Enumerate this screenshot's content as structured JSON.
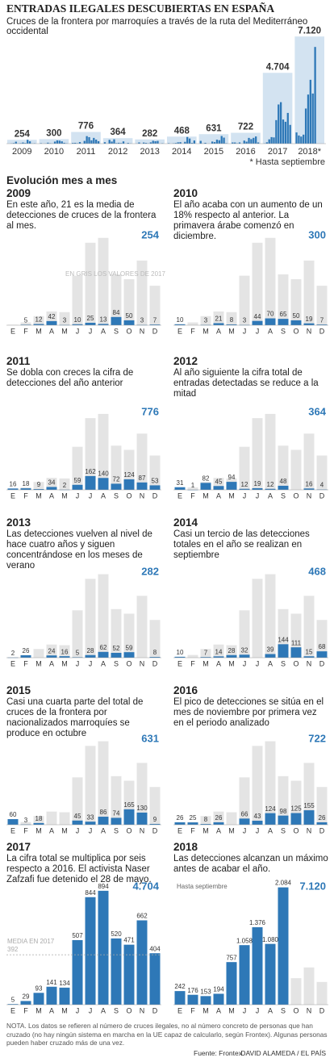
{
  "chart_data": [
    {
      "type": "bar",
      "title": "ENTRADAS ILEGALES DESCUBIERTAS EN ESPAÑA",
      "subtitle": "Cruces de la frontera por marroquíes a través de la ruta del Mediterráneo occidental",
      "categories": [
        "2009",
        "2010",
        "2011",
        "2012",
        "2013",
        "2014",
        "2015",
        "2016",
        "2017",
        "2018*"
      ],
      "values": [
        254,
        300,
        776,
        364,
        282,
        468,
        631,
        722,
        4704,
        7120
      ],
      "value_labels": [
        "254",
        "300",
        "776",
        "364",
        "282",
        "468",
        "631",
        "722",
        "4.704",
        "7.120"
      ],
      "ylim": [
        0,
        7400
      ],
      "y2lim": [
        0,
        2400
      ],
      "color": "#d3e3f1",
      "bar_color": "#2e78b7",
      "footnote": "* Hasta septiembre"
    },
    {
      "type": "bar",
      "title": "2009",
      "subtitle": "En este año, 21 es la media de detecciones de cruces de la frontera al mes.",
      "total": 254,
      "categories": [
        "E",
        "F",
        "M",
        "A",
        "M",
        "J",
        "J",
        "A",
        "S",
        "O",
        "N",
        "D"
      ],
      "values": [
        null,
        5,
        12,
        42,
        3,
        10,
        25,
        13,
        84,
        50,
        3,
        7
      ],
      "ylim": [
        0,
        950
      ],
      "color": "#2e78b7",
      "background_color": "#e4e4e4",
      "annotation": "EN GRIS LOS VALORES DE 2017"
    },
    {
      "type": "bar",
      "title": "2010",
      "subtitle": "El año acaba con un aumento de un 18% respecto al anterior. La primavera árabe comenzó en diciembre.",
      "total": 300,
      "categories": [
        "E",
        "F",
        "M",
        "A",
        "M",
        "J",
        "J",
        "A",
        "S",
        "O",
        "N",
        "D"
      ],
      "values": [
        10,
        null,
        3,
        21,
        8,
        3,
        44,
        70,
        65,
        50,
        19,
        7
      ],
      "ylim": [
        0,
        950
      ],
      "color": "#2e78b7",
      "background_color": "#e4e4e4"
    },
    {
      "type": "bar",
      "title": "2011",
      "subtitle": "Se dobla con creces la cifra de detecciones del año anterior",
      "total": 776,
      "categories": [
        "E",
        "F",
        "M",
        "A",
        "M",
        "J",
        "J",
        "A",
        "S",
        "O",
        "N",
        "D"
      ],
      "values": [
        16,
        18,
        9,
        34,
        2,
        59,
        162,
        140,
        72,
        124,
        87,
        53
      ],
      "ylim": [
        0,
        950
      ],
      "color": "#2e78b7",
      "background_color": "#e4e4e4"
    },
    {
      "type": "bar",
      "title": "2012",
      "subtitle": "Al año siguiente la cifra total de entradas detectadas se reduce a la mitad",
      "total": 364,
      "categories": [
        "E",
        "F",
        "M",
        "A",
        "M",
        "J",
        "J",
        "A",
        "S",
        "O",
        "N",
        "D"
      ],
      "values": [
        31,
        1,
        82,
        45,
        94,
        12,
        19,
        12,
        48,
        null,
        16,
        4
      ],
      "ylim": [
        0,
        950
      ],
      "color": "#2e78b7",
      "background_color": "#e4e4e4"
    },
    {
      "type": "bar",
      "title": "2013",
      "subtitle": "Las detecciones vuelven al nivel de hace cuatro años y siguen concentrándose en los meses de verano",
      "total": 282,
      "categories": [
        "E",
        "F",
        "M",
        "A",
        "M",
        "J",
        "J",
        "A",
        "S",
        "O",
        "N",
        "D"
      ],
      "values": [
        2,
        26,
        null,
        24,
        16,
        5,
        28,
        62,
        52,
        59,
        null,
        8
      ],
      "ylim": [
        0,
        950
      ],
      "color": "#2e78b7",
      "background_color": "#e4e4e4"
    },
    {
      "type": "bar",
      "title": "2014",
      "subtitle": "Casi un tercio de las detecciones totales en el año se realizan en septiembre",
      "total": 468,
      "categories": [
        "E",
        "F",
        "M",
        "A",
        "M",
        "J",
        "J",
        "A",
        "S",
        "O",
        "N",
        "D"
      ],
      "values": [
        10,
        null,
        7,
        14,
        28,
        32,
        null,
        39,
        144,
        111,
        15,
        68
      ],
      "ylim": [
        0,
        950
      ],
      "color": "#2e78b7",
      "background_color": "#e4e4e4"
    },
    {
      "type": "bar",
      "title": "2015",
      "subtitle": "Casi una cuarta parte del total de cruces de la frontera por nacionalizados marroquíes se produce en octubre",
      "total": 631,
      "categories": [
        "E",
        "F",
        "M",
        "A",
        "M",
        "J",
        "J",
        "A",
        "S",
        "O",
        "N",
        "D"
      ],
      "values": [
        60,
        3,
        18,
        null,
        null,
        45,
        33,
        86,
        74,
        165,
        130,
        9
      ],
      "ylim": [
        0,
        950
      ],
      "color": "#2e78b7",
      "background_color": "#e4e4e4"
    },
    {
      "type": "bar",
      "title": "2016",
      "subtitle": "El pico de detecciones se sitúa en el mes de noviembre por primera vez en el periodo analizado",
      "total": 722,
      "categories": [
        "E",
        "F",
        "M",
        "A",
        "M",
        "J",
        "J",
        "A",
        "S",
        "O",
        "N",
        "D"
      ],
      "values": [
        26,
        25,
        8,
        26,
        null,
        66,
        43,
        124,
        98,
        125,
        155,
        26
      ],
      "ylim": [
        0,
        950
      ],
      "color": "#2e78b7",
      "background_color": "#e4e4e4"
    },
    {
      "type": "bar",
      "title": "2017",
      "subtitle": "La cifra total se multiplica por seis respecto a 2016. El activista Naser Zafzafi fue detenido el 28 de mayo.",
      "total": 4704,
      "total_label": "4.704",
      "categories": [
        "E",
        "F",
        "M",
        "A",
        "M",
        "J",
        "J",
        "A",
        "S",
        "O",
        "N",
        "D"
      ],
      "values": [
        5,
        29,
        93,
        141,
        134,
        507,
        844,
        894,
        520,
        471,
        662,
        404
      ],
      "ylim": [
        0,
        950
      ],
      "color": "#2e78b7",
      "mean": 392,
      "mean_label": "MEDIA EN 2017"
    },
    {
      "type": "bar",
      "title": "2018",
      "subtitle": "Las detecciones alcanzan un máximo antes de acabar el año.",
      "total": 7120,
      "total_label": "7.120",
      "categories": [
        "E",
        "F",
        "M",
        "A",
        "M",
        "J",
        "J",
        "A",
        "S",
        "O",
        "N",
        "D"
      ],
      "values": [
        242,
        176,
        153,
        194,
        757,
        1058,
        1376,
        1080,
        2084,
        null,
        null,
        null
      ],
      "value_labels": [
        "242",
        "176",
        "153",
        "194",
        "757",
        "1.058",
        "1.376",
        "1.080",
        "2.084",
        null,
        null,
        null
      ],
      "ylim": [
        0,
        2150
      ],
      "color": "#2e78b7",
      "background_color": "#e4e4e4",
      "annotation": "Hasta septiembre"
    }
  ],
  "section_title": "Evolución mes a mes",
  "note": "NOTA. Los datos se refieren al número de cruces ilegales, no al número concreto de personas que han cruzado (no hay ningún sistema en marcha en la UE capaz de calcularlo, según Frontex). Algunas personas pueden haber cruzado más de una vez.",
  "source": "Fuente: Frontex.",
  "credit": "DAVID ALAMEDA / EL PAÍS"
}
